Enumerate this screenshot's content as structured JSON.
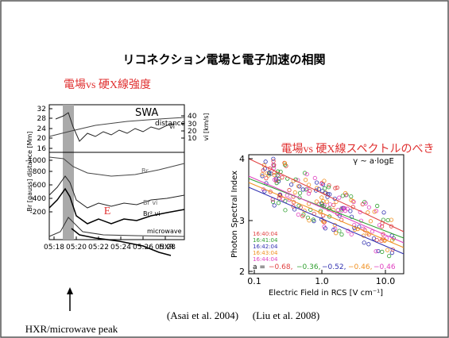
{
  "title": "リコネクション電場と電子加速の相関",
  "left_caption": "電場vs 硬X線強度",
  "right_caption": "電場vs 硬X線スペクトルのべき",
  "left_figure": {
    "y_label": "Br [gauss] distance [Mm]",
    "y2_label": "vi [km/s]",
    "y_ticks_left": [
      "32",
      "28",
      "24",
      "20",
      "16",
      "-1000",
      "-800",
      "-600",
      "-400",
      "-200"
    ],
    "y_ticks_right": [
      "40",
      "30",
      "20",
      "10"
    ],
    "x_ticks": [
      "05:18",
      "05:20",
      "05:22",
      "05:24",
      "05:26",
      "05:28"
    ],
    "curve_labels": [
      "SWA",
      "distance",
      "vi",
      "Br",
      "Br vi",
      "Br² vi",
      "microwave",
      "HXR"
    ],
    "annotation": "E",
    "citation": "(Asai et al. 2004)",
    "arrow_label": "HXR/microwave peak"
  },
  "right_figure": {
    "y_label": "Photon Spectral Index",
    "x_label": "Electric Field in RCS [V cm⁻¹]",
    "formula": "γ ~ a·logE",
    "y_ticks": [
      "2",
      "3",
      "4"
    ],
    "x_ticks": [
      "0.1",
      "1.0",
      "10.0"
    ],
    "legend": [
      "16:40:04",
      "16:41:04",
      "16:42:04",
      "16:43:04",
      "16:44:04"
    ],
    "a_prefix": "a =",
    "a_values": [
      "−0.68,",
      "−0.36,",
      "−0.52,",
      "−0.46,",
      "−0.46"
    ],
    "citation": "(Liu et al. 2008)"
  }
}
